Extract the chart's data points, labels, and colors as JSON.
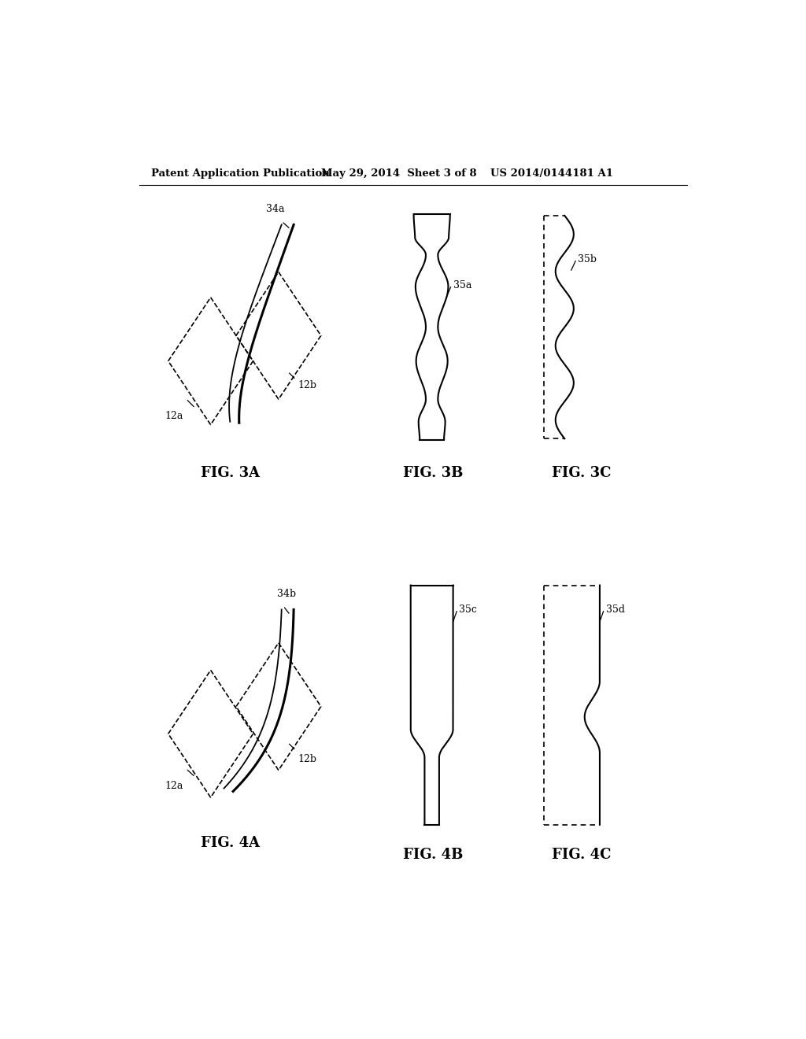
{
  "header_left": "Patent Application Publication",
  "header_mid": "May 29, 2014  Sheet 3 of 8",
  "header_right": "US 2014/0144181 A1",
  "fig_labels": {
    "3A": "FIG. 3A",
    "3B": "FIG. 3B",
    "3C": "FIG. 3C",
    "4A": "FIG. 4A",
    "4B": "FIG. 4B",
    "4C": "FIG. 4C"
  },
  "bg_color": "#ffffff",
  "line_color": "#000000"
}
